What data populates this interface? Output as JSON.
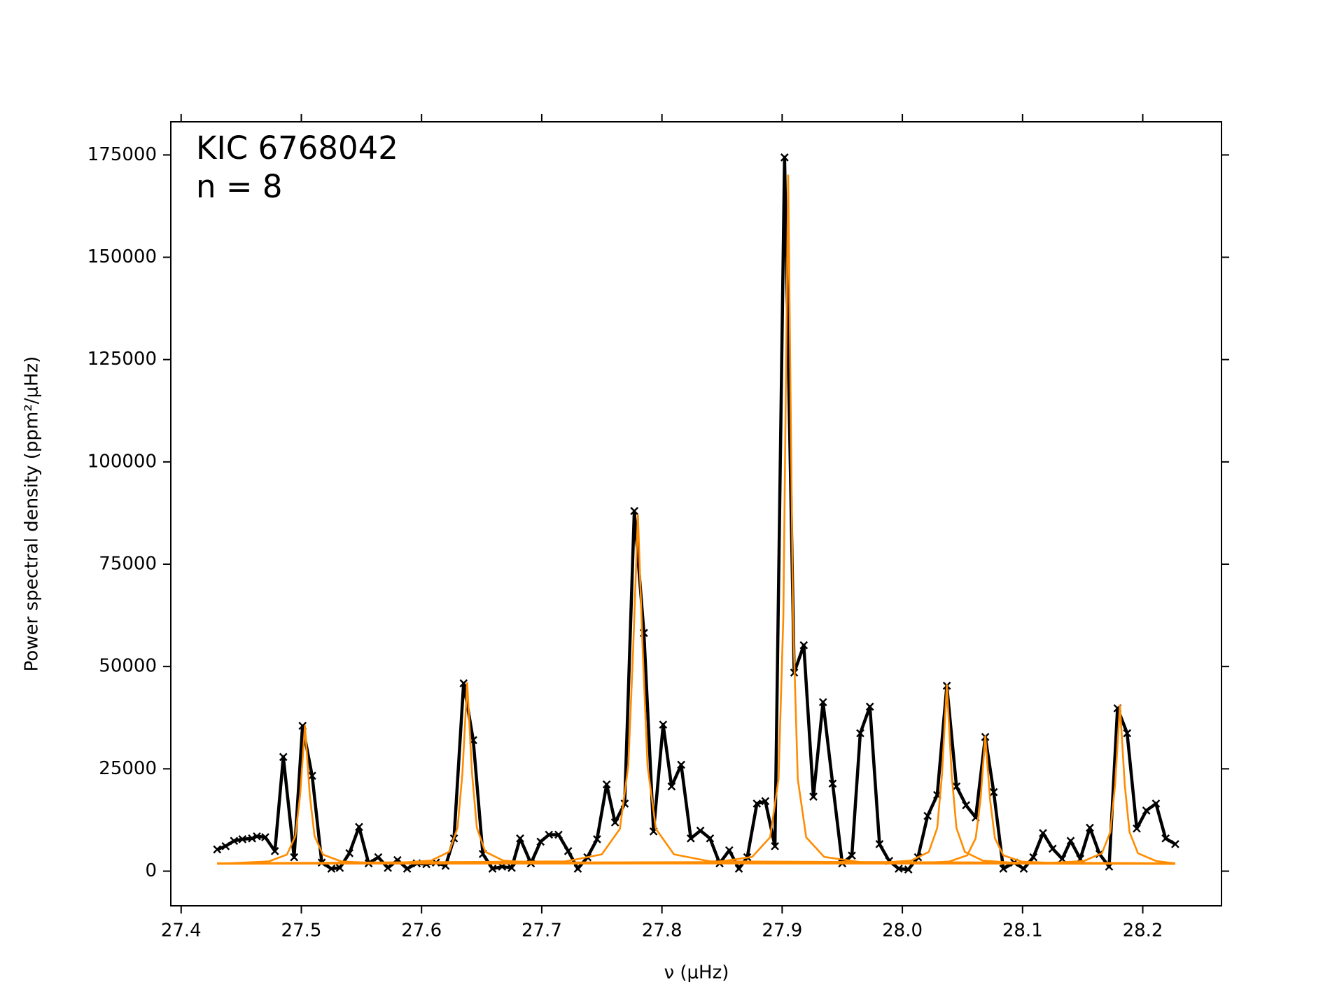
{
  "chart_data": {
    "type": "line",
    "annotations": [
      "KIC 6768042",
      "n = 8"
    ],
    "x_label": "ν (μHz)",
    "y_label": "Power spectral density (ppm²/μHz)",
    "xlim": [
      27.3914,
      28.2655
    ],
    "ylim": [
      -8467,
      183100
    ],
    "xticks": [
      27.4,
      27.5,
      27.6,
      27.7,
      27.8,
      27.9,
      {
        "value": 28,
        "label": "28.0"
      },
      28.1,
      28.2
    ],
    "yticks": [
      0,
      25000,
      50000,
      75000,
      100000,
      125000,
      150000,
      175000
    ],
    "series": [
      {
        "color": "#000000",
        "marker": "x",
        "x": [
          27.43,
          27.437,
          27.444,
          27.451,
          27.459,
          27.463,
          27.47,
          27.478,
          27.485,
          27.494,
          27.501,
          27.509,
          27.517,
          27.525,
          27.532,
          27.54,
          27.548,
          27.556,
          27.564,
          27.572,
          27.58,
          27.588,
          27.596,
          27.604,
          27.612,
          27.62,
          27.627,
          27.635,
          27.643,
          27.651,
          27.659,
          27.667,
          27.675,
          27.682,
          27.691,
          27.699,
          27.706,
          27.714,
          27.722,
          27.73,
          27.738,
          27.746,
          27.754,
          27.761,
          27.769,
          27.777,
          27.785,
          27.793,
          27.801,
          27.808,
          27.816,
          27.824,
          27.832,
          27.84,
          27.848,
          27.856,
          27.864,
          27.871,
          27.879,
          27.886,
          27.894,
          27.902,
          27.91,
          27.918,
          27.926,
          27.934,
          27.942,
          27.95,
          27.958,
          27.965,
          27.973,
          27.981,
          27.989,
          27.997,
          28.005,
          28.013,
          28.021,
          28.029,
          28.037,
          28.045,
          28.053,
          28.061,
          28.069,
          28.076,
          28.084,
          28.093,
          28.101,
          28.109,
          28.117,
          28.125,
          28.133,
          28.14,
          28.148,
          28.156,
          28.164,
          28.172,
          28.179,
          28.187,
          28.195,
          28.203,
          28.211,
          28.219,
          28.227
        ],
        "values": [
          5300,
          6100,
          7400,
          7800,
          8000,
          8500,
          8300,
          4900,
          27900,
          3400,
          35500,
          23300,
          2100,
          600,
          800,
          4400,
          10800,
          1900,
          3400,
          800,
          2700,
          600,
          1900,
          1700,
          2100,
          1300,
          8000,
          45900,
          32000,
          4200,
          600,
          1100,
          800,
          8000,
          1900,
          7200,
          8900,
          8900,
          4900,
          600,
          3400,
          7800,
          21200,
          11900,
          16500,
          88000,
          58200,
          9700,
          35800,
          20700,
          26000,
          8000,
          9900,
          8000,
          1900,
          5100,
          600,
          3400,
          16500,
          17100,
          6100,
          174400,
          48500,
          55200,
          18200,
          41300,
          21400,
          1900,
          3800,
          33700,
          40200,
          6600,
          2500,
          600,
          400,
          3400,
          13500,
          18600,
          45300,
          20700,
          16100,
          13100,
          32800,
          19300,
          600,
          2100,
          600,
          3400,
          9300,
          5500,
          3000,
          7400,
          3000,
          10600,
          4200,
          1100,
          39800,
          33700,
          10400,
          14800,
          16500,
          8000,
          6600
        ]
      },
      {
        "color": "#ff8c00",
        "x": [
          27.43,
          27.443,
          27.473,
          27.488,
          27.495,
          27.499,
          27.503,
          27.507,
          27.511,
          27.518,
          27.533,
          27.563,
          28.227
        ],
        "values": [
          1830,
          1950,
          2390,
          4040,
          8540,
          18650,
          35500,
          18650,
          8540,
          4040,
          2390,
          1950,
          1800
        ]
      },
      {
        "color": "#ff8c00",
        "x": [
          27.43,
          27.578,
          27.608,
          27.623,
          27.63,
          27.634,
          27.638,
          27.642,
          27.646,
          27.653,
          27.668,
          27.698,
          28.227
        ],
        "values": [
          1840,
          1990,
          2570,
          4730,
          10640,
          23900,
          46000,
          23900,
          10640,
          4730,
          2570,
          1990,
          1800
        ]
      },
      {
        "color": "#ff8c00",
        "x": [
          27.43,
          27.72,
          27.75,
          27.765,
          27.772,
          27.776,
          27.78,
          27.784,
          27.788,
          27.795,
          27.81,
          27.84,
          28.227
        ],
        "values": [
          1900,
          2390,
          4100,
          10320,
          25740,
          53770,
          87000,
          53770,
          25740,
          10320,
          4100,
          2390,
          1900
        ]
      },
      {
        "color": "#ff8c00",
        "x": [
          27.43,
          27.845,
          27.875,
          27.89,
          27.897,
          27.901,
          27.905,
          27.909,
          27.913,
          27.92,
          27.935,
          27.965,
          28.227
        ],
        "values": [
          1900,
          2220,
          3470,
          8280,
          22490,
          62350,
          170000,
          62350,
          22490,
          8280,
          3470,
          2220,
          1900
        ]
      },
      {
        "color": "#ff8c00",
        "x": [
          27.43,
          27.977,
          28.007,
          28.022,
          28.029,
          28.033,
          28.037,
          28.041,
          28.045,
          28.052,
          28.067,
          28.097,
          28.227
        ],
        "values": [
          1830,
          1990,
          2560,
          4700,
          10540,
          23650,
          45500,
          23650,
          10540,
          4700,
          2560,
          1990,
          1800
        ]
      },
      {
        "color": "#ff8c00",
        "x": [
          27.43,
          28.009,
          28.039,
          28.054,
          28.061,
          28.065,
          28.069,
          28.073,
          28.077,
          28.084,
          28.099,
          28.129,
          28.227
        ],
        "values": [
          1820,
          1940,
          2350,
          3870,
          8040,
          17400,
          33000,
          17400,
          8040,
          3870,
          2350,
          1940,
          1800
        ]
      },
      {
        "color": "#ff8c00",
        "x": [
          27.43,
          28.121,
          28.151,
          28.166,
          28.173,
          28.177,
          28.181,
          28.185,
          28.189,
          28.196,
          28.211,
          28.227
        ],
        "values": [
          1830,
          1970,
          2480,
          4370,
          9540,
          21150,
          40500,
          21150,
          9540,
          4370,
          2480,
          1900
        ]
      }
    ]
  }
}
